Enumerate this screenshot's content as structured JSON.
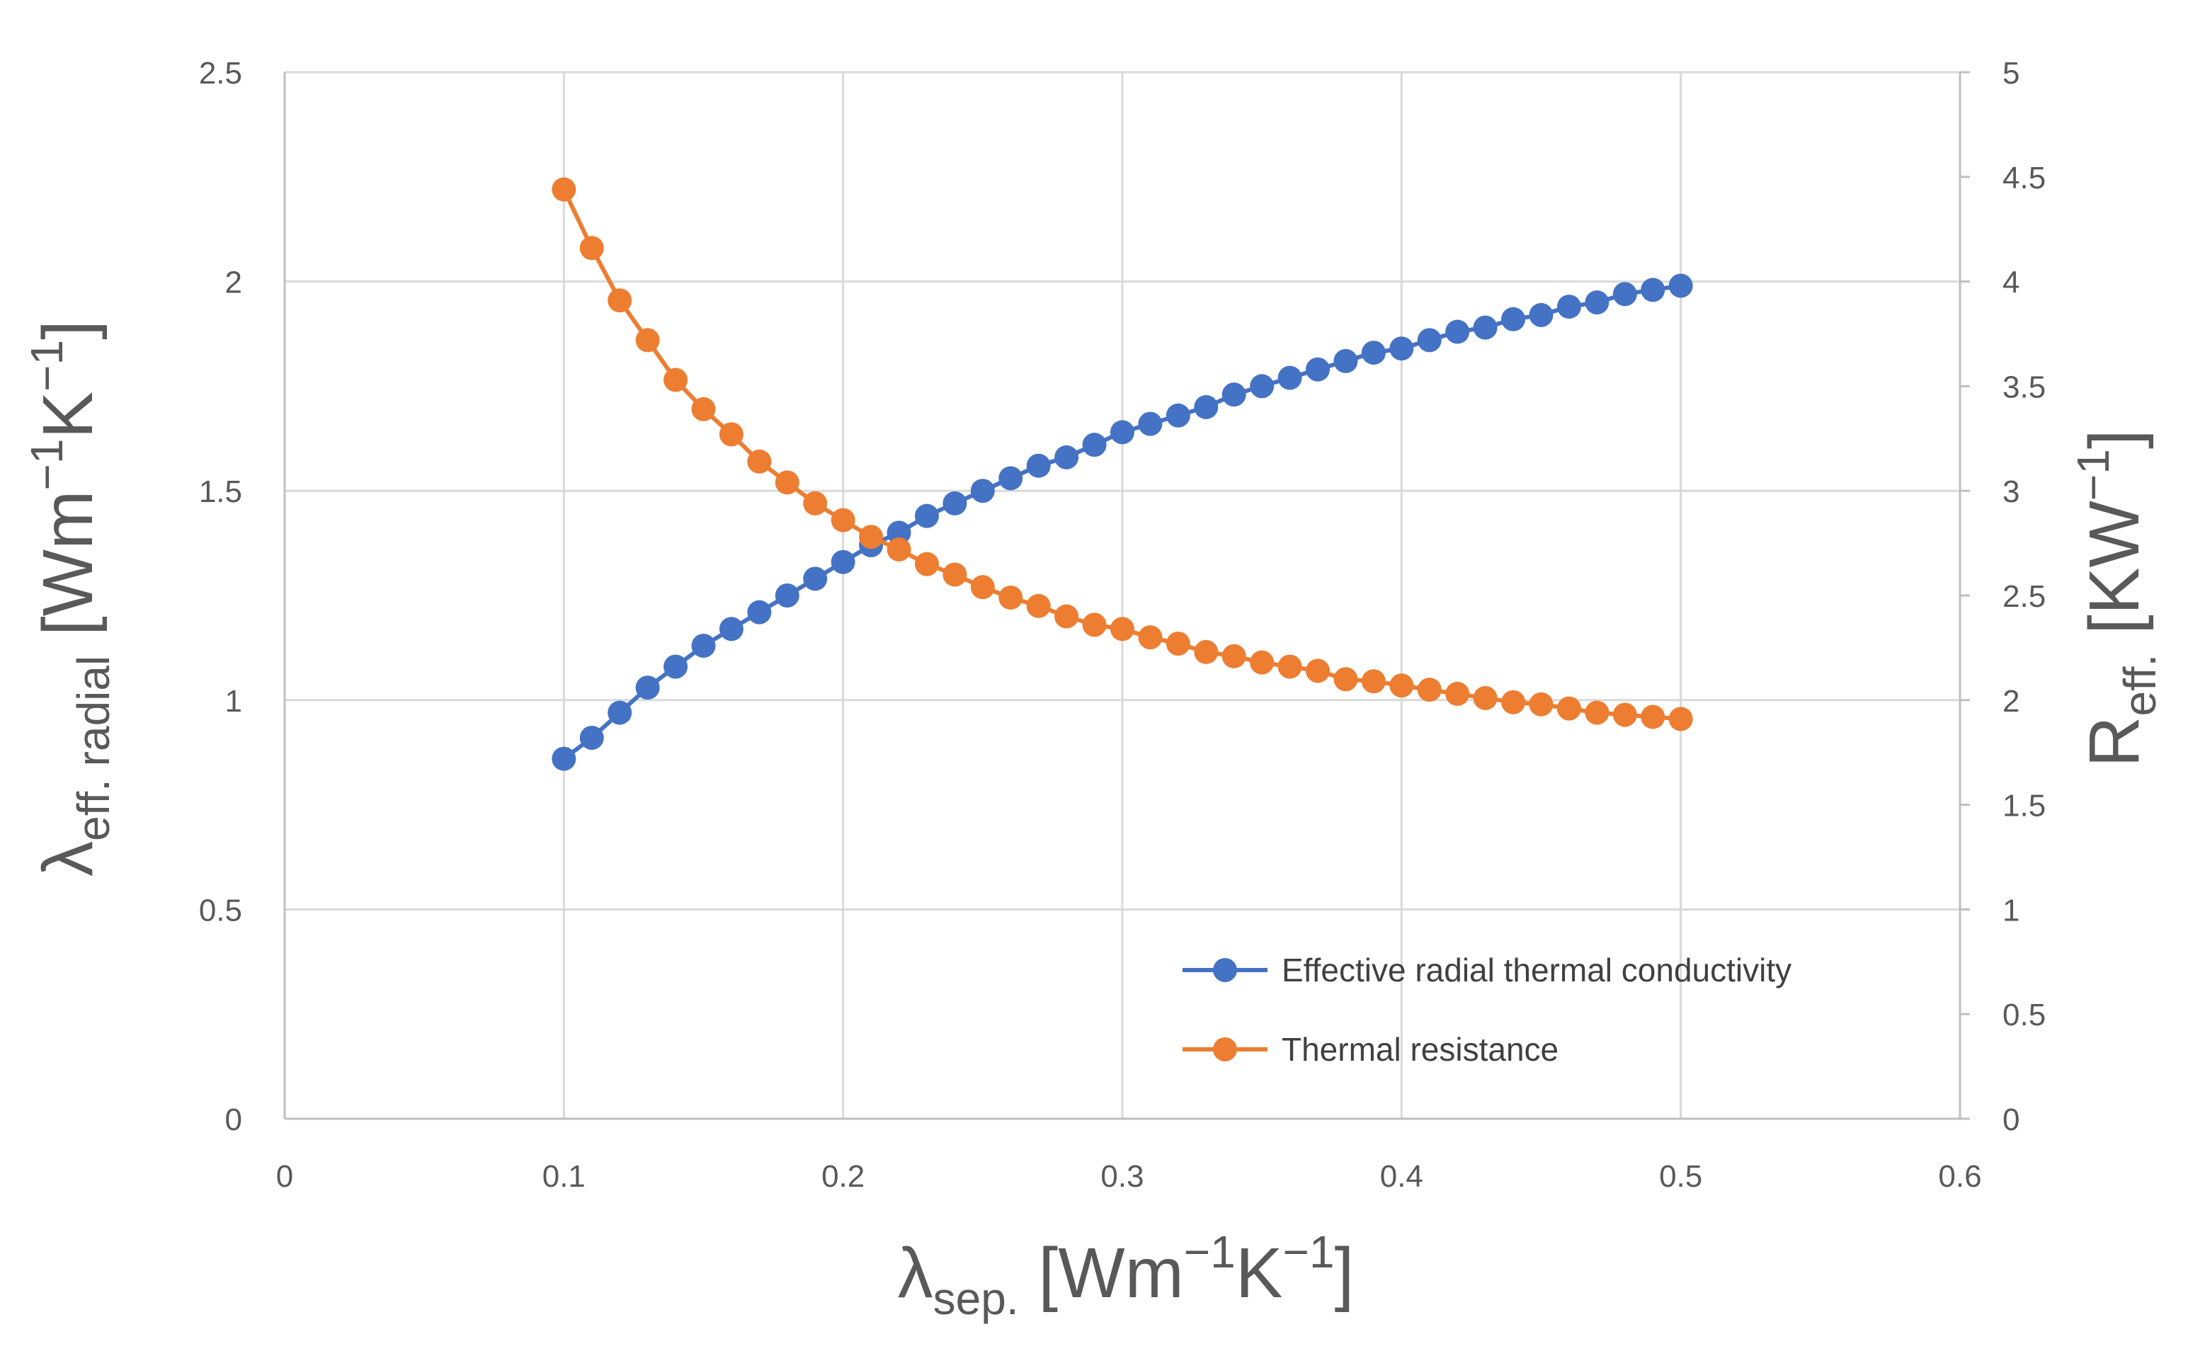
{
  "chart_data": {
    "type": "line",
    "x_axis": {
      "label": {
        "base": "λ",
        "sub": "sep.",
        "units": " [Wm",
        "exp1": "−1",
        "mid": "K",
        "exp2": "−1",
        "end": "]"
      },
      "range": [
        0,
        0.6
      ],
      "ticks": [
        "0",
        "0.1",
        "0.2",
        "0.3",
        "0.4",
        "0.5",
        "0.6"
      ]
    },
    "y_axis_left": {
      "label": {
        "base": "λ",
        "sub": "eff. radial",
        "units": " [Wm",
        "exp1": "−1",
        "mid": "K",
        "exp2": "−1",
        "end": "]"
      },
      "range": [
        0,
        2.5
      ],
      "ticks": [
        "0",
        "0.5",
        "1",
        "1.5",
        "2",
        "2.5"
      ]
    },
    "y_axis_right": {
      "label": {
        "base": "R",
        "sub": "eff.",
        "units": " [KW",
        "exp1": "−1",
        "end": "]"
      },
      "range": [
        0,
        5
      ],
      "ticks": [
        "0",
        "0.5",
        "1",
        "1.5",
        "2",
        "2.5",
        "3",
        "3.5",
        "4",
        "4.5",
        "5"
      ]
    },
    "grid": true,
    "legend_position": "bottom-right",
    "x": [
      0.1,
      0.11,
      0.12,
      0.13,
      0.14,
      0.15,
      0.16,
      0.17,
      0.18,
      0.19,
      0.2,
      0.21,
      0.22,
      0.23,
      0.24,
      0.25,
      0.26,
      0.27,
      0.28,
      0.29,
      0.3,
      0.31,
      0.32,
      0.33,
      0.34,
      0.35,
      0.36,
      0.37,
      0.38,
      0.39,
      0.4,
      0.41,
      0.42,
      0.43,
      0.44,
      0.45,
      0.46,
      0.47,
      0.48,
      0.49,
      0.5
    ],
    "series": [
      {
        "name": "Effective radial thermal conductivity",
        "axis": "left",
        "color": "#4472c4",
        "values": [
          0.86,
          0.91,
          0.97,
          1.03,
          1.08,
          1.13,
          1.17,
          1.21,
          1.25,
          1.29,
          1.33,
          1.37,
          1.4,
          1.44,
          1.47,
          1.5,
          1.53,
          1.56,
          1.58,
          1.61,
          1.64,
          1.66,
          1.68,
          1.7,
          1.73,
          1.75,
          1.77,
          1.79,
          1.81,
          1.83,
          1.84,
          1.86,
          1.88,
          1.89,
          1.91,
          1.92,
          1.94,
          1.95,
          1.97,
          1.98,
          1.99
        ]
      },
      {
        "name": "Thermal resistance",
        "axis": "right",
        "color": "#ed7d31",
        "values": [
          4.44,
          4.16,
          3.91,
          3.72,
          3.53,
          3.39,
          3.27,
          3.14,
          3.04,
          2.94,
          2.86,
          2.78,
          2.72,
          2.65,
          2.6,
          2.54,
          2.49,
          2.45,
          2.4,
          2.36,
          2.34,
          2.3,
          2.27,
          2.23,
          2.21,
          2.18,
          2.16,
          2.14,
          2.1,
          2.09,
          2.07,
          2.05,
          2.03,
          2.01,
          1.99,
          1.98,
          1.96,
          1.94,
          1.93,
          1.92,
          1.91
        ]
      }
    ]
  }
}
